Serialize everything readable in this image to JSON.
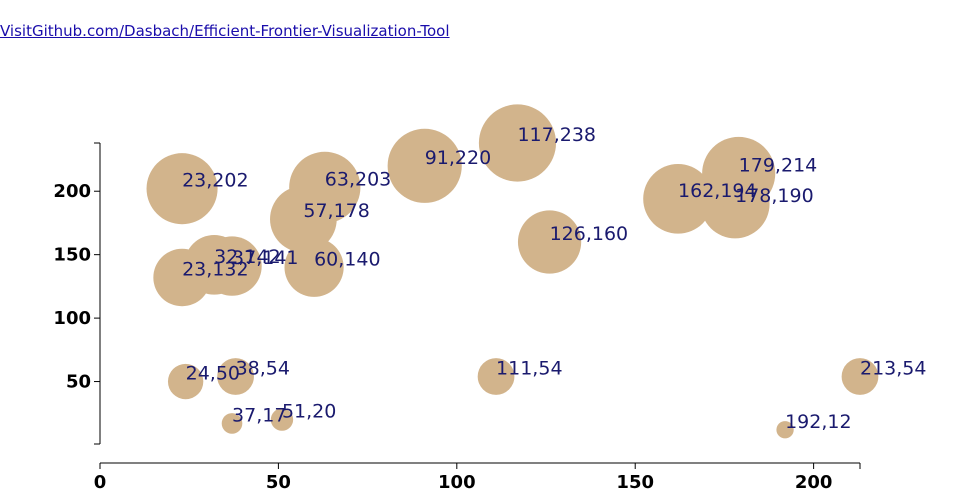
{
  "link": {
    "text": "VisitGithub.com/Dasbach/Efficient-Frontier-Visualization-Tool"
  },
  "colors": {
    "bubble": "#D2B48C",
    "label": "#1a1a6e",
    "axis": "#000000"
  },
  "chart_data": {
    "type": "scatter",
    "title": "",
    "xlabel": "",
    "ylabel": "",
    "xlim": [
      0,
      213
    ],
    "ylim": [
      0,
      238
    ],
    "x_ticks": [
      0,
      50,
      100,
      150,
      200
    ],
    "y_ticks": [
      50,
      100,
      150,
      200
    ],
    "grid": false,
    "points": [
      {
        "x": 23,
        "y": 202,
        "size": 202,
        "label": "23,202"
      },
      {
        "x": 23,
        "y": 132,
        "size": 132,
        "label": "23,132"
      },
      {
        "x": 24,
        "y": 50,
        "size": 50,
        "label": "24,50"
      },
      {
        "x": 32,
        "y": 142,
        "size": 142,
        "label": "32,142"
      },
      {
        "x": 37,
        "y": 141,
        "size": 141,
        "label": "37,141"
      },
      {
        "x": 37,
        "y": 17,
        "size": 17,
        "label": "37,17"
      },
      {
        "x": 38,
        "y": 54,
        "size": 54,
        "label": "38,54"
      },
      {
        "x": 51,
        "y": 20,
        "size": 20,
        "label": "51,20"
      },
      {
        "x": 57,
        "y": 178,
        "size": 178,
        "label": "57,178"
      },
      {
        "x": 60,
        "y": 140,
        "size": 140,
        "label": "60,140"
      },
      {
        "x": 63,
        "y": 203,
        "size": 203,
        "label": "63,203"
      },
      {
        "x": 91,
        "y": 220,
        "size": 220,
        "label": "91,220"
      },
      {
        "x": 111,
        "y": 54,
        "size": 54,
        "label": "111,54"
      },
      {
        "x": 117,
        "y": 238,
        "size": 238,
        "label": "117,238"
      },
      {
        "x": 126,
        "y": 160,
        "size": 160,
        "label": "126,160"
      },
      {
        "x": 162,
        "y": 194,
        "size": 194,
        "label": "162,194"
      },
      {
        "x": 178,
        "y": 190,
        "size": 190,
        "label": "178,190"
      },
      {
        "x": 179,
        "y": 214,
        "size": 214,
        "label": "179,214"
      },
      {
        "x": 192,
        "y": 12,
        "size": 12,
        "label": "192,12"
      },
      {
        "x": 213,
        "y": 54,
        "size": 54,
        "label": "213,54"
      }
    ]
  }
}
